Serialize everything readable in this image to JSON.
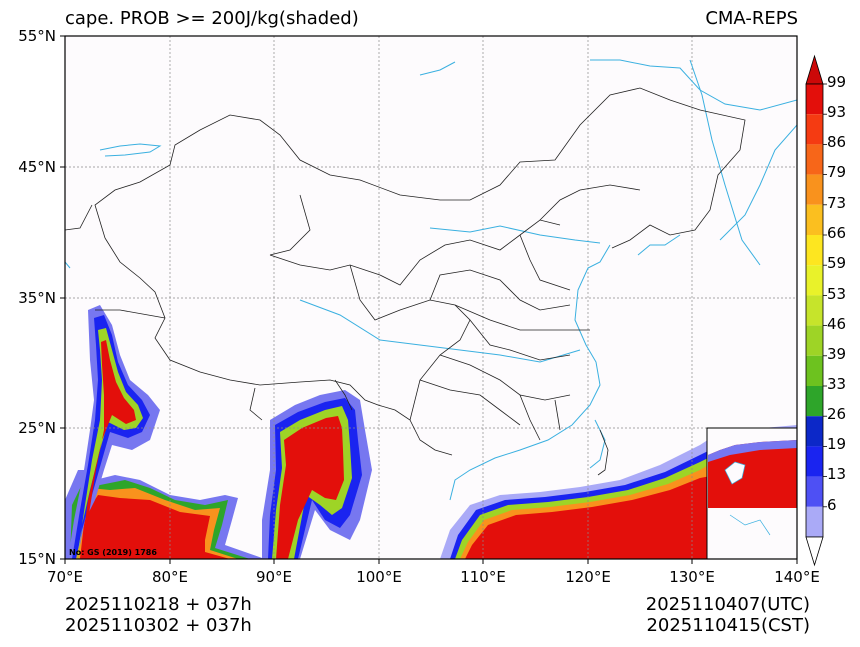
{
  "title": {
    "left": "cape. PROB >= 200J/kg(shaded)",
    "right": "CMA-REPS"
  },
  "axes": {
    "lat_labels": [
      "55°N",
      "45°N",
      "35°N",
      "25°N",
      "15°N"
    ],
    "lon_labels": [
      "70°E",
      "80°E",
      "90°E",
      "100°E",
      "110°E",
      "120°E",
      "130°E",
      "140°E"
    ]
  },
  "colorbar": {
    "labels": [
      "99",
      "93",
      "86",
      "79",
      "73",
      "66",
      "59",
      "53",
      "46",
      "39",
      "33",
      "26",
      "19",
      "13",
      "6"
    ],
    "colors": [
      "#e30f0b",
      "#f53b12",
      "#f76619",
      "#f9921d",
      "#fbbf1f",
      "#fde620",
      "#e9f22a",
      "#c6e42b",
      "#9ed426",
      "#6dc21f",
      "#2ea52a",
      "#0c28c8",
      "#1a24f0",
      "#4e50f4",
      "#aaaaf7"
    ],
    "top_arrow_color": "#cc0808",
    "bottom_arrow_color": "#ffffff"
  },
  "footer": {
    "left_line1": "2025110218  +  037h",
    "left_line2": "2025110302  +  037h",
    "right_line1": "2025110407(UTC)",
    "right_line2": "2025110415(CST)"
  },
  "credit": "No: GS (2019) 1786",
  "colors": {
    "coast": "#3ab0e0",
    "border": "#222222",
    "grid": "#8a8a8a",
    "ocean_bg": "#fdfbfd"
  }
}
